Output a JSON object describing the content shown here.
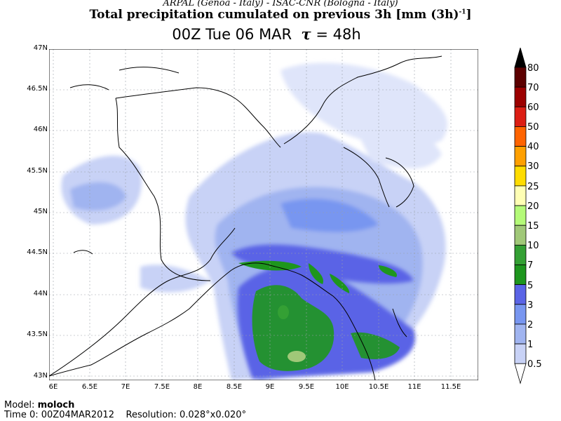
{
  "header": {
    "credits": "ARPAL (Genoa - Italy)  -  ISAC-CNR (Bologna - Italy)",
    "title": "Total precipitation cumulated on previous 3h [mm (3h)",
    "title_sup": "-1",
    "title_end": "]",
    "time_label": "00Z Tue 06 MAR",
    "tau_symbol": "τ",
    "tau_value": "= 48h"
  },
  "axes": {
    "lat_labels": [
      "47N",
      "46.5N",
      "46N",
      "45.5N",
      "45N",
      "44.5N",
      "44N",
      "43.5N",
      "43N"
    ],
    "lon_labels": [
      "6E",
      "6.5E",
      "7E",
      "7.5E",
      "8E",
      "8.5E",
      "9E",
      "9.5E",
      "10E",
      "10.5E",
      "11E",
      "11.5E"
    ]
  },
  "colorbar": {
    "labels": [
      "80",
      "70",
      "60",
      "50",
      "40",
      "30",
      "25",
      "20",
      "15",
      "10",
      "7",
      "5",
      "3",
      "2",
      "1",
      "0.5"
    ],
    "colors": [
      "#000000",
      "#5c0000",
      "#9c0000",
      "#dc1e14",
      "#ff6400",
      "#ffa000",
      "#ffdc00",
      "#ffffb4",
      "#b4fa78",
      "#a0c878",
      "#34a034",
      "#1e961e",
      "#5a64e6",
      "#7896f0",
      "#a0b4f0",
      "#c8d2f6",
      "#ffffff"
    ]
  },
  "footer": {
    "model_label": "Model:",
    "model_value": "moloch",
    "time0_label": "Time 0:",
    "time0_value": "00Z04MAR2012",
    "resolution_label": "Resolution:",
    "resolution_value": "0.028°x0.020°"
  }
}
